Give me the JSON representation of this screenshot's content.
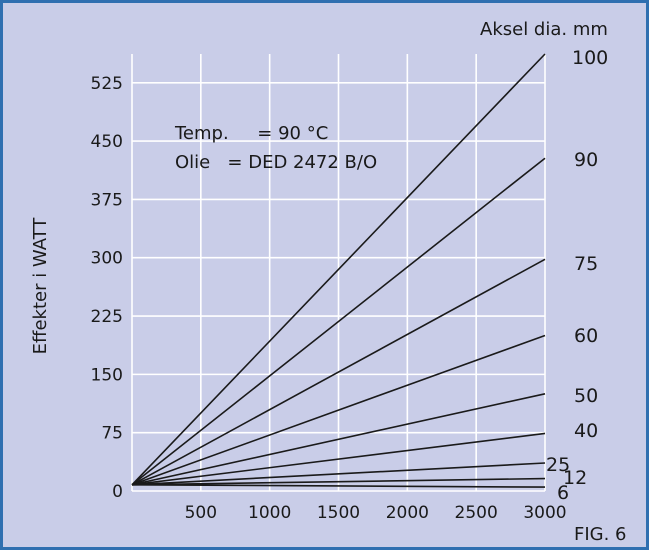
{
  "chart_data": {
    "type": "line",
    "title": "",
    "xlabel": "",
    "ylabel": "Effekter i WATT",
    "xlim": [
      0,
      3000
    ],
    "ylim": [
      0,
      562
    ],
    "x_ticks": [
      500,
      1000,
      1500,
      2000,
      2500,
      3000
    ],
    "y_ticks": [
      0,
      75,
      150,
      225,
      300,
      375,
      450,
      525
    ],
    "grid": true,
    "series_header": "Aksel dia. mm",
    "notes": [
      "Temp.     = 90 °C",
      "Olie   = DED 2472 B/O"
    ],
    "figure_label": "FIG. 6",
    "series": [
      {
        "name": "100",
        "x": [
          0,
          3000
        ],
        "y": [
          8,
          562
        ]
      },
      {
        "name": "90",
        "x": [
          0,
          3000
        ],
        "y": [
          8,
          428
        ]
      },
      {
        "name": "75",
        "x": [
          0,
          3000
        ],
        "y": [
          8,
          298
        ]
      },
      {
        "name": "60",
        "x": [
          0,
          3000
        ],
        "y": [
          8,
          200
        ]
      },
      {
        "name": "50",
        "x": [
          0,
          3000
        ],
        "y": [
          8,
          125
        ]
      },
      {
        "name": "40",
        "x": [
          0,
          3000
        ],
        "y": [
          8,
          74
        ]
      },
      {
        "name": "25",
        "x": [
          0,
          3000
        ],
        "y": [
          8,
          36
        ]
      },
      {
        "name": "12",
        "x": [
          0,
          3000
        ],
        "y": [
          8,
          16
        ]
      },
      {
        "name": "6",
        "x": [
          0,
          3000
        ],
        "y": [
          8,
          5
        ]
      }
    ]
  }
}
